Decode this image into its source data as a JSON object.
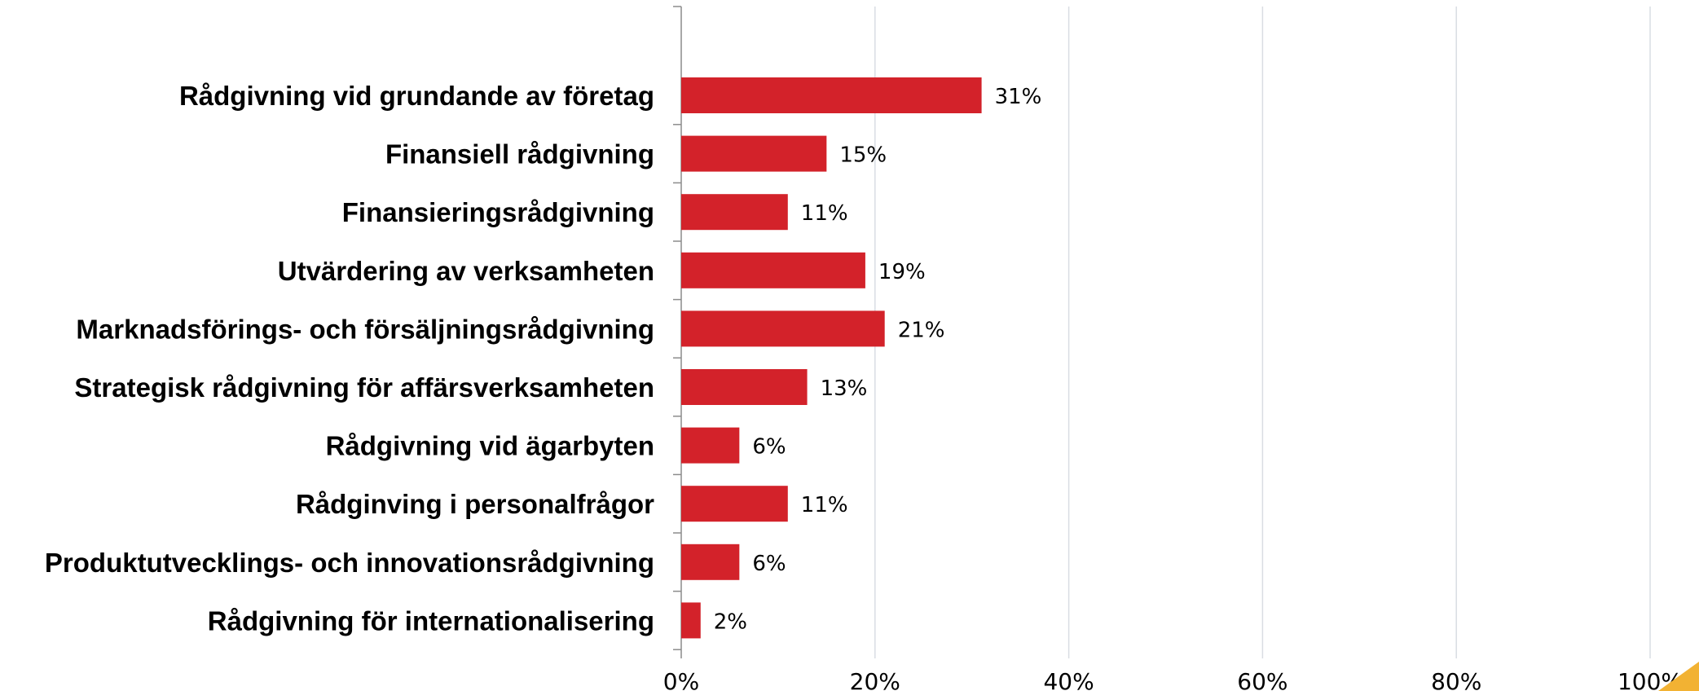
{
  "chart_data": {
    "type": "bar",
    "orientation": "horizontal",
    "categories": [
      "Rådgivning vid grundande av företag",
      "Finansiell rådgivning",
      "Finansieringsrådgivning",
      "Utvärdering av verksamheten",
      "Marknadsförings- och försäljningsrådgivning",
      "Strategisk rådgivning för affärsverksamheten",
      "Rådgivning vid ägarbyten",
      "Rådginving i personalfrågor",
      "Produktutvecklings- och innovationsrådgivning",
      "Rådgivning för internationalisering"
    ],
    "values": [
      31,
      15,
      11,
      19,
      21,
      13,
      6,
      11,
      6,
      2
    ],
    "value_labels": [
      "31%",
      "15%",
      "11%",
      "19%",
      "21%",
      "13%",
      "6%",
      "11%",
      "6%",
      "2%"
    ],
    "xlim": [
      0,
      100
    ],
    "xticks": [
      0,
      20,
      40,
      60,
      80,
      100
    ],
    "xtick_labels": [
      "0%",
      "20%",
      "40%",
      "60%",
      "80%",
      "100%"
    ],
    "grid": "vertical",
    "bar_color": "#d3222a",
    "grid_color": "#d9dde3",
    "title": "",
    "xlabel": "",
    "ylabel": ""
  }
}
